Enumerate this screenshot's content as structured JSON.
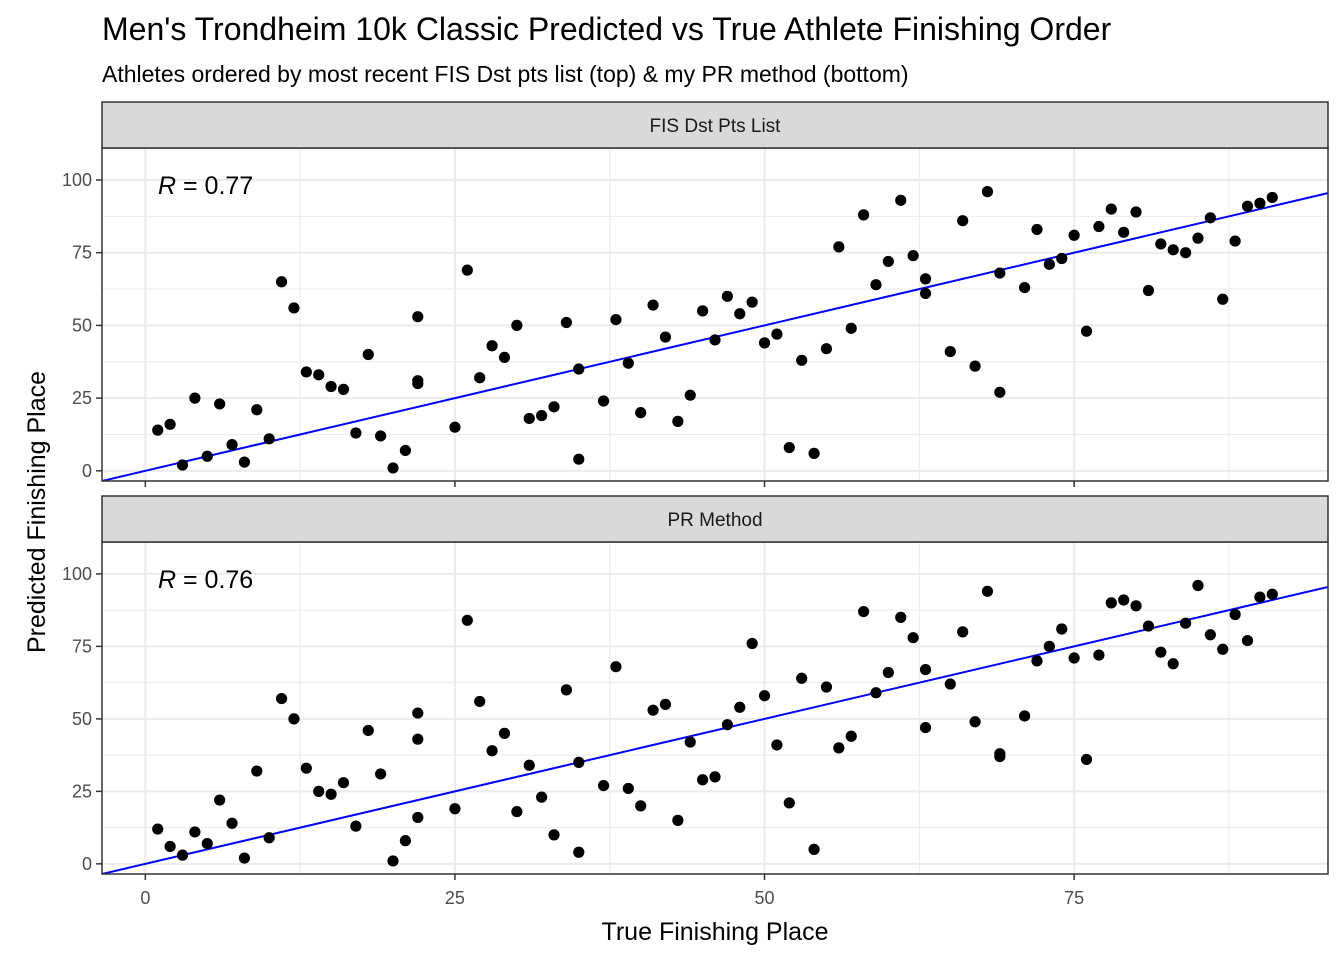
{
  "title": "Men's Trondheim 10k Classic Predicted vs True Athlete Finishing Order",
  "subtitle": "Athletes ordered by most recent FIS Dst pts list (top) & my PR method (bottom)",
  "colors": {
    "points": "#000000",
    "fit_line": "#0000ff",
    "strip_bg": "#d9d9d9",
    "grid": "#ebebeb"
  },
  "chart_data": {
    "type": "scatter",
    "xlabel": "True Finishing Place",
    "ylabel": "Predicted Finishing Place",
    "xlim": [
      -3.5,
      95.5
    ],
    "ylim": [
      -3.5,
      111
    ],
    "x_ticks": [
      0,
      25,
      50,
      75
    ],
    "y_ticks": [
      0,
      25,
      50,
      75,
      100
    ],
    "grid": true,
    "panels": [
      {
        "strip": "FIS Dst Pts List",
        "r_symbol": "R",
        "r_text": " = 0.77",
        "fit_line": {
          "intercept": 0.0,
          "slope": 1.0
        },
        "points": [
          [
            1,
            14
          ],
          [
            2,
            16
          ],
          [
            3,
            2
          ],
          [
            4,
            25
          ],
          [
            5,
            5
          ],
          [
            6,
            23
          ],
          [
            7,
            9
          ],
          [
            8,
            3
          ],
          [
            9,
            21
          ],
          [
            10,
            11
          ],
          [
            11,
            65
          ],
          [
            12,
            56
          ],
          [
            13,
            34
          ],
          [
            14,
            33
          ],
          [
            15,
            29
          ],
          [
            16,
            28
          ],
          [
            17,
            13
          ],
          [
            18,
            40
          ],
          [
            19,
            12
          ],
          [
            20,
            1
          ],
          [
            21,
            7
          ],
          [
            22,
            53
          ],
          [
            22,
            31
          ],
          [
            22,
            30
          ],
          [
            25,
            15
          ],
          [
            26,
            69
          ],
          [
            27,
            32
          ],
          [
            28,
            43
          ],
          [
            29,
            39
          ],
          [
            30,
            50
          ],
          [
            31,
            18
          ],
          [
            32,
            19
          ],
          [
            33,
            22
          ],
          [
            34,
            51
          ],
          [
            35,
            35
          ],
          [
            35,
            4
          ],
          [
            37,
            24
          ],
          [
            38,
            52
          ],
          [
            39,
            37
          ],
          [
            40,
            20
          ],
          [
            41,
            57
          ],
          [
            42,
            46
          ],
          [
            43,
            17
          ],
          [
            44,
            26
          ],
          [
            45,
            55
          ],
          [
            46,
            45
          ],
          [
            47,
            60
          ],
          [
            48,
            54
          ],
          [
            49,
            58
          ],
          [
            50,
            44
          ],
          [
            51,
            47
          ],
          [
            52,
            8
          ],
          [
            53,
            38
          ],
          [
            54,
            6
          ],
          [
            55,
            42
          ],
          [
            56,
            77
          ],
          [
            57,
            49
          ],
          [
            58,
            88
          ],
          [
            59,
            64
          ],
          [
            60,
            72
          ],
          [
            61,
            93
          ],
          [
            62,
            74
          ],
          [
            63,
            66
          ],
          [
            63,
            61
          ],
          [
            65,
            41
          ],
          [
            66,
            86
          ],
          [
            67,
            36
          ],
          [
            68,
            96
          ],
          [
            69,
            68
          ],
          [
            69,
            27
          ],
          [
            71,
            63
          ],
          [
            72,
            83
          ],
          [
            73,
            71
          ],
          [
            74,
            73
          ],
          [
            75,
            81
          ],
          [
            76,
            48
          ],
          [
            77,
            84
          ],
          [
            78,
            90
          ],
          [
            79,
            82
          ],
          [
            80,
            89
          ],
          [
            81,
            62
          ],
          [
            82,
            78
          ],
          [
            83,
            76
          ],
          [
            84,
            75
          ],
          [
            85,
            80
          ],
          [
            86,
            87
          ],
          [
            87,
            59
          ],
          [
            88,
            79
          ],
          [
            89,
            91
          ],
          [
            90,
            92
          ],
          [
            91,
            94
          ]
        ]
      },
      {
        "strip": "PR Method",
        "r_symbol": "R",
        "r_text": " = 0.76",
        "fit_line": {
          "intercept": 0.0,
          "slope": 1.0
        },
        "points": [
          [
            1,
            12
          ],
          [
            2,
            6
          ],
          [
            3,
            3
          ],
          [
            4,
            11
          ],
          [
            5,
            7
          ],
          [
            6,
            22
          ],
          [
            7,
            14
          ],
          [
            8,
            2
          ],
          [
            9,
            32
          ],
          [
            10,
            9
          ],
          [
            11,
            57
          ],
          [
            12,
            50
          ],
          [
            13,
            33
          ],
          [
            14,
            25
          ],
          [
            15,
            24
          ],
          [
            16,
            28
          ],
          [
            17,
            13
          ],
          [
            18,
            46
          ],
          [
            19,
            31
          ],
          [
            20,
            1
          ],
          [
            21,
            8
          ],
          [
            22,
            52
          ],
          [
            22,
            43
          ],
          [
            22,
            16
          ],
          [
            25,
            19
          ],
          [
            26,
            84
          ],
          [
            27,
            56
          ],
          [
            28,
            39
          ],
          [
            29,
            45
          ],
          [
            30,
            18
          ],
          [
            31,
            34
          ],
          [
            32,
            23
          ],
          [
            33,
            10
          ],
          [
            34,
            60
          ],
          [
            35,
            35
          ],
          [
            35,
            4
          ],
          [
            37,
            27
          ],
          [
            38,
            68
          ],
          [
            39,
            26
          ],
          [
            40,
            20
          ],
          [
            41,
            53
          ],
          [
            42,
            55
          ],
          [
            43,
            15
          ],
          [
            44,
            42
          ],
          [
            45,
            29
          ],
          [
            46,
            30
          ],
          [
            47,
            48
          ],
          [
            48,
            54
          ],
          [
            49,
            76
          ],
          [
            50,
            58
          ],
          [
            51,
            41
          ],
          [
            52,
            21
          ],
          [
            53,
            64
          ],
          [
            54,
            5
          ],
          [
            55,
            61
          ],
          [
            56,
            40
          ],
          [
            57,
            44
          ],
          [
            58,
            87
          ],
          [
            59,
            59
          ],
          [
            60,
            66
          ],
          [
            61,
            85
          ],
          [
            62,
            78
          ],
          [
            63,
            67
          ],
          [
            63,
            47
          ],
          [
            65,
            62
          ],
          [
            66,
            80
          ],
          [
            67,
            49
          ],
          [
            68,
            94
          ],
          [
            69,
            38
          ],
          [
            69,
            37
          ],
          [
            71,
            51
          ],
          [
            72,
            70
          ],
          [
            73,
            75
          ],
          [
            74,
            81
          ],
          [
            75,
            71
          ],
          [
            76,
            36
          ],
          [
            77,
            72
          ],
          [
            78,
            90
          ],
          [
            79,
            91
          ],
          [
            80,
            89
          ],
          [
            81,
            82
          ],
          [
            82,
            73
          ],
          [
            83,
            69
          ],
          [
            84,
            83
          ],
          [
            85,
            96
          ],
          [
            86,
            79
          ],
          [
            87,
            74
          ],
          [
            88,
            86
          ],
          [
            89,
            77
          ],
          [
            90,
            92
          ],
          [
            91,
            93
          ]
        ]
      }
    ]
  }
}
